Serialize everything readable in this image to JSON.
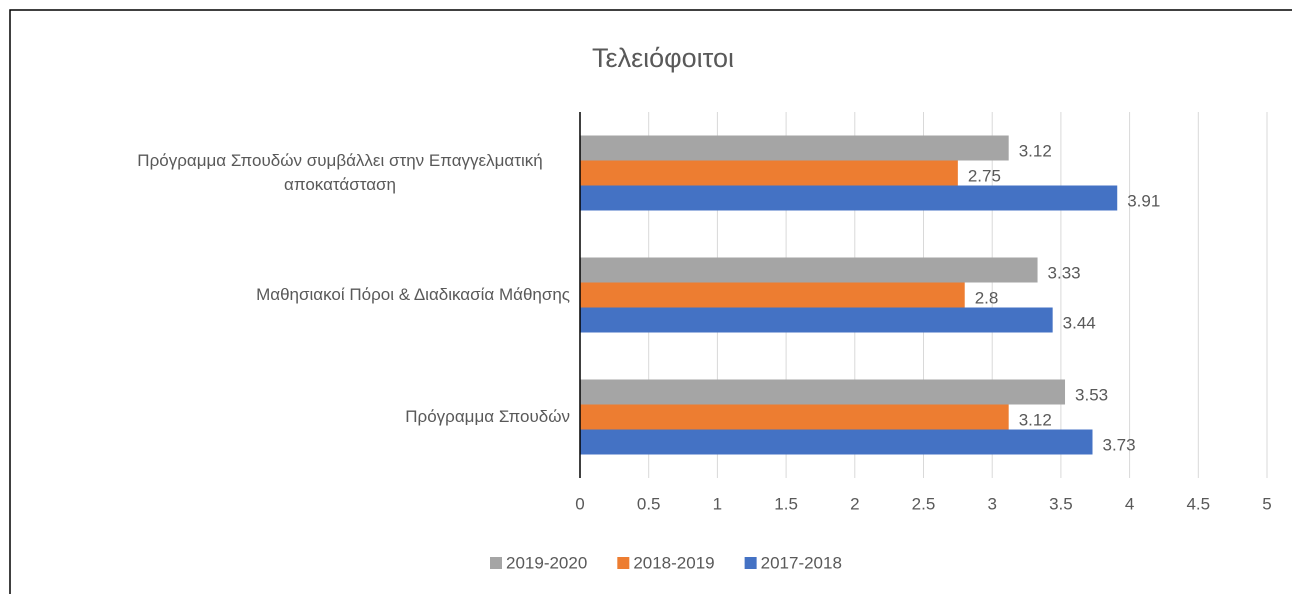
{
  "chart_data": {
    "type": "bar",
    "orientation": "horizontal",
    "title": "Τελειόφοιτοι",
    "categories": [
      "Πρόγραμμα Σπουδών συμβάλλει στην Επαγγελματική αποκατάσταση",
      "Μαθησιακοί Πόροι & Διαδικασία Μάθησης",
      "Πρόγραμμα Σπουδών"
    ],
    "series": [
      {
        "name": "2019-2020",
        "color": "#a5a5a5",
        "values": [
          3.12,
          3.33,
          3.53
        ]
      },
      {
        "name": "2018-2019",
        "color": "#ed7d31",
        "values": [
          2.75,
          2.8,
          3.12
        ]
      },
      {
        "name": "2017-2018",
        "color": "#4472c4",
        "values": [
          3.91,
          3.44,
          3.73
        ]
      }
    ],
    "xlim": [
      0,
      5
    ],
    "xticks": [
      0,
      0.5,
      1,
      1.5,
      2,
      2.5,
      3,
      3.5,
      4,
      4.5,
      5
    ],
    "grid": true,
    "legend": "bottom"
  }
}
